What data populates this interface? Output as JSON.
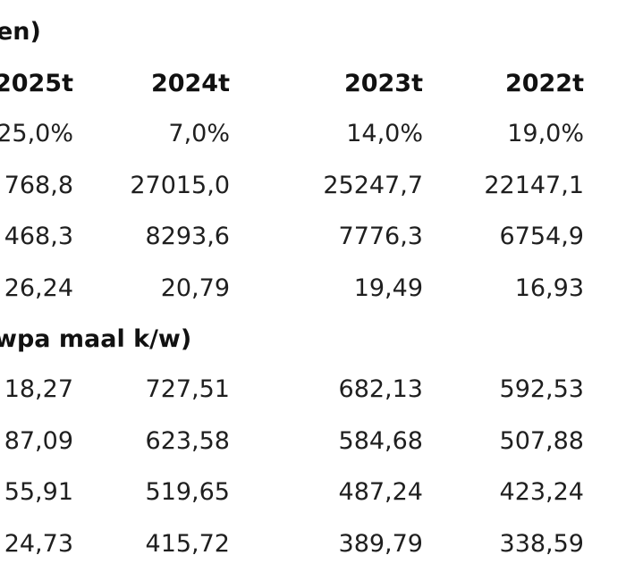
{
  "section1_title": "en)",
  "columns": [
    "2025t",
    "2024t",
    "2023t",
    "2022t"
  ],
  "rows_top": [
    [
      "25,0%",
      "7,0%",
      "14,0%",
      "19,0%"
    ],
    [
      "768,8",
      "27015,0",
      "25247,7",
      "22147,1"
    ],
    [
      "468,3",
      "8293,6",
      "7776,3",
      "6754,9"
    ],
    [
      "26,24",
      "20,79",
      "19,49",
      "16,93"
    ]
  ],
  "section2_title": "wpa maal k/w)",
  "rows_bottom": [
    [
      "18,27",
      "727,51",
      "682,13",
      "592,53"
    ],
    [
      "87,09",
      "623,58",
      "584,68",
      "507,88"
    ],
    [
      "55,91",
      "519,65",
      "487,24",
      "423,24"
    ],
    [
      "24,73",
      "415,72",
      "389,79",
      "338,59"
    ]
  ]
}
